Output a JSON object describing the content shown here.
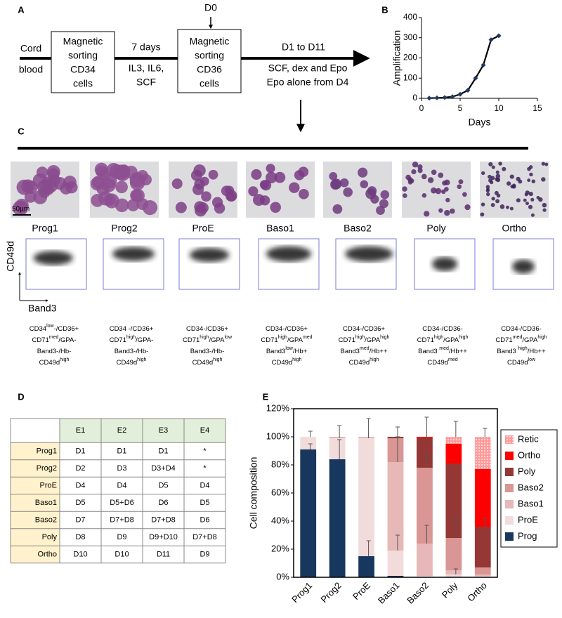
{
  "panel_labels": [
    "A",
    "B",
    "C",
    "D",
    "E"
  ],
  "diagram": {
    "source": [
      "Cord",
      "blood"
    ],
    "step1": [
      "Magnetic",
      "sorting",
      "CD34",
      "cells"
    ],
    "culture1_duration": "7 days",
    "culture1_factors": [
      "IL3, IL6,",
      "SCF"
    ],
    "day0": "D0",
    "step2": [
      "Magnetic",
      "sorting",
      "CD36",
      "cells"
    ],
    "culture2_duration": "D1 to D11",
    "culture2_factors": [
      "SCF, dex and Epo",
      "Epo alone  from D4"
    ]
  },
  "chart_data": [
    {
      "type": "line",
      "x_label": "Days",
      "y_label": "Amplification",
      "x": [
        1,
        2,
        3,
        4,
        5,
        6,
        7,
        8,
        9,
        10
      ],
      "series": [
        {
          "color": "#1f3864",
          "values": [
            1,
            2,
            4,
            8,
            20,
            40,
            100,
            165,
            290,
            310
          ]
        }
      ],
      "xlim": [
        0,
        15
      ],
      "xticks": [
        0,
        5,
        10,
        15
      ],
      "ylim": [
        0,
        400
      ],
      "yticks": [
        0,
        100,
        200,
        300,
        400
      ]
    },
    {
      "type": "stacked_bar",
      "y_label": "Cell composition",
      "categories": [
        "Prog1",
        "Prog2",
        "ProE",
        "Baso1",
        "Baso2",
        "Poly",
        "Ortho"
      ],
      "series": [
        {
          "name": "Prog",
          "color": "#17375e",
          "values": [
            91,
            84,
            15,
            1,
            0,
            0,
            0
          ],
          "errors": [
            4,
            14,
            11,
            null,
            null,
            null,
            null
          ]
        },
        {
          "name": "ProE",
          "color": "#f2dcdb",
          "values": [
            9,
            15,
            84,
            18,
            1,
            2,
            1
          ],
          "errors": [
            4,
            9,
            14,
            11,
            null,
            4,
            null
          ]
        },
        {
          "name": "Baso1",
          "color": "#e6b8b7",
          "values": [
            0,
            1,
            1,
            63,
            23,
            3,
            1
          ],
          "errors": [
            null,
            null,
            null,
            18,
            13,
            null,
            null
          ]
        },
        {
          "name": "Baso2",
          "color": "#d99694",
          "values": [
            0,
            0,
            0,
            17,
            54,
            23,
            5
          ],
          "errors": [
            null,
            null,
            null,
            null,
            9,
            14,
            null
          ]
        },
        {
          "name": "Poly",
          "color": "#953735",
          "values": [
            0,
            0,
            0,
            1,
            21,
            53,
            29
          ],
          "errors": [
            null,
            null,
            null,
            7,
            15,
            null,
            6
          ]
        },
        {
          "name": "Ortho",
          "color": "#ff0000",
          "values": [
            0,
            0,
            0,
            0,
            1,
            14,
            41
          ],
          "errors": [
            null,
            null,
            null,
            null,
            null,
            null,
            null
          ]
        },
        {
          "name": "Retic",
          "color": "#ff9a9a",
          "values": [
            0,
            0,
            0,
            0,
            0,
            5,
            23
          ],
          "errors": [
            null,
            null,
            null,
            null,
            null,
            11,
            6
          ]
        }
      ],
      "ylim": [
        0,
        120
      ],
      "yticks": [
        {
          "value": 0,
          "label": "0%"
        },
        {
          "value": 20,
          "label": "20%"
        },
        {
          "value": 40,
          "label": "40%"
        },
        {
          "value": 60,
          "label": "60%"
        },
        {
          "value": 80,
          "label": "80%"
        },
        {
          "value": 100,
          "label": "100%"
        },
        {
          "value": 120,
          "label": "120%"
        }
      ],
      "legend": "right"
    }
  ],
  "micrographs": {
    "scale_bar": "50µm",
    "stages": [
      "Prog1",
      "Prog2",
      "ProE",
      "Baso1",
      "Baso2",
      "Poly",
      "Ortho"
    ]
  },
  "flow": {
    "y_axis": "CD49d",
    "x_axis": "Band3",
    "phenotypes": [
      [
        [
          "CD34",
          "low",
          "-/CD36+"
        ],
        [
          "CD71",
          "med",
          "/GPA-"
        ],
        [
          "Band3-/Hb-"
        ],
        [
          "CD49d",
          "high"
        ]
      ],
      [
        [
          "CD34 -/CD36+"
        ],
        [
          "CD71",
          "high",
          "/GPA-"
        ],
        [
          "Band3-/Hb-"
        ],
        [
          "CD49d",
          "high"
        ]
      ],
      [
        [
          "CD34-/CD36+"
        ],
        [
          "CD71",
          "high",
          "/GPA",
          "low"
        ],
        [
          "Band3-/Hb-"
        ],
        [
          "CD49d",
          "high"
        ]
      ],
      [
        [
          "CD34-/CD36+"
        ],
        [
          "CD71",
          "high",
          "/GPA",
          "med"
        ],
        [
          "Band3",
          "low",
          "/Hb+"
        ],
        [
          "CD49d",
          "high"
        ]
      ],
      [
        [
          "CD34-/CD36+"
        ],
        [
          "CD71",
          "high",
          "/GPA",
          "high"
        ],
        [
          "Band3",
          "med",
          "/Hb++"
        ],
        [
          "CD49d",
          "high"
        ]
      ],
      [
        [
          "CD34-/CD36-"
        ],
        [
          "CD71",
          "high",
          "/GPA",
          "high"
        ],
        [
          "Band3 ",
          "med",
          "/Hb++"
        ],
        [
          "CD49d",
          "med"
        ]
      ],
      [
        [
          "CD34-/CD36-"
        ],
        [
          "CD71",
          "med",
          "/GPA",
          "high"
        ],
        [
          "Band3 ",
          "high",
          "/Hb++"
        ],
        [
          "CD49d",
          "low"
        ]
      ]
    ]
  },
  "table": {
    "columns": [
      "E1",
      "E2",
      "E3",
      "E4"
    ],
    "rows": [
      {
        "label": "Prog1",
        "cells": [
          "D1",
          "D1",
          "D1",
          "*"
        ]
      },
      {
        "label": "Prog2",
        "cells": [
          "D2",
          "D3",
          "D3+D4",
          "*"
        ]
      },
      {
        "label": "ProE",
        "cells": [
          "D4",
          "D4",
          "D5",
          "D4"
        ]
      },
      {
        "label": "Baso1",
        "cells": [
          "D5",
          "D5+D6",
          "D6",
          "D5"
        ]
      },
      {
        "label": "Baso2",
        "cells": [
          "D7",
          "D7+D8",
          "D7+D8",
          "D6"
        ]
      },
      {
        "label": "Poly",
        "cells": [
          "D8",
          "D9",
          "D9+D10",
          "D7+D8"
        ]
      },
      {
        "label": "Ortho",
        "cells": [
          "D10",
          "D10",
          "D11",
          "D9"
        ]
      }
    ]
  }
}
